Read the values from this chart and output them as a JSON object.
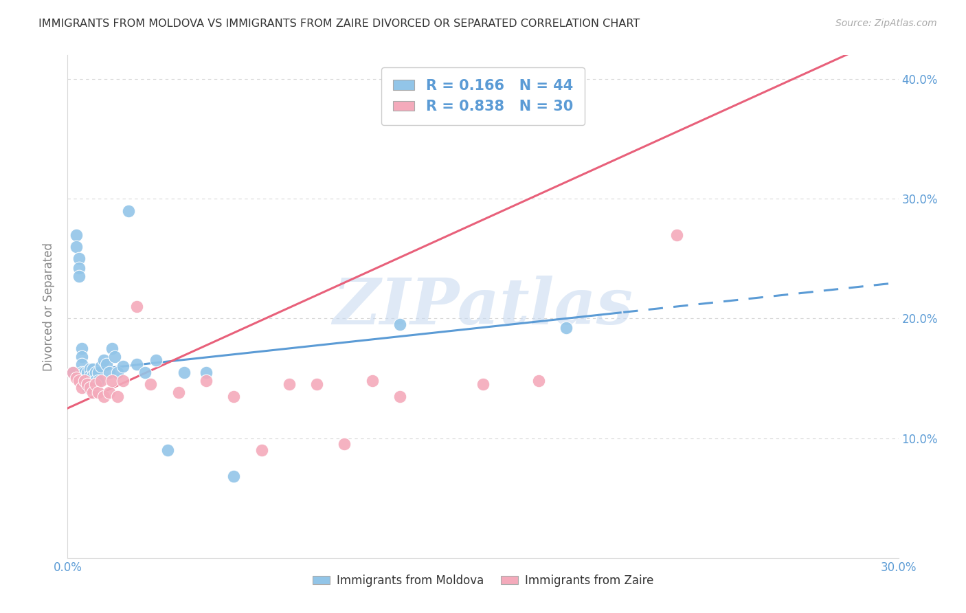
{
  "title": "IMMIGRANTS FROM MOLDOVA VS IMMIGRANTS FROM ZAIRE DIVORCED OR SEPARATED CORRELATION CHART",
  "source": "Source: ZipAtlas.com",
  "ylabel": "Divorced or Separated",
  "xlim": [
    0.0,
    0.3
  ],
  "ylim": [
    0.0,
    0.42
  ],
  "xticks": [
    0.0,
    0.05,
    0.1,
    0.15,
    0.2,
    0.25,
    0.3
  ],
  "yticks": [
    0.1,
    0.2,
    0.3,
    0.4
  ],
  "background_color": "#ffffff",
  "grid_color": "#d8d8d8",
  "moldova_color": "#92C5E8",
  "zaire_color": "#F4AABB",
  "moldova_line_color": "#5B9BD5",
  "zaire_line_color": "#E8607A",
  "watermark_text": "ZIPatlas",
  "moldova_R": 0.166,
  "moldova_N": 44,
  "zaire_R": 0.838,
  "zaire_N": 30,
  "moldova_points_x": [
    0.002,
    0.003,
    0.003,
    0.004,
    0.004,
    0.004,
    0.005,
    0.005,
    0.005,
    0.005,
    0.006,
    0.006,
    0.006,
    0.007,
    0.007,
    0.007,
    0.008,
    0.008,
    0.008,
    0.009,
    0.009,
    0.009,
    0.01,
    0.01,
    0.011,
    0.011,
    0.012,
    0.013,
    0.014,
    0.015,
    0.016,
    0.017,
    0.018,
    0.02,
    0.022,
    0.025,
    0.028,
    0.032,
    0.036,
    0.042,
    0.05,
    0.06,
    0.12,
    0.18
  ],
  "moldova_points_y": [
    0.155,
    0.27,
    0.26,
    0.25,
    0.242,
    0.235,
    0.175,
    0.168,
    0.162,
    0.155,
    0.155,
    0.15,
    0.145,
    0.155,
    0.148,
    0.142,
    0.158,
    0.152,
    0.146,
    0.158,
    0.152,
    0.146,
    0.155,
    0.148,
    0.155,
    0.148,
    0.16,
    0.165,
    0.162,
    0.155,
    0.175,
    0.168,
    0.155,
    0.16,
    0.29,
    0.162,
    0.155,
    0.165,
    0.09,
    0.155,
    0.155,
    0.068,
    0.195,
    0.192
  ],
  "zaire_points_x": [
    0.002,
    0.003,
    0.004,
    0.005,
    0.006,
    0.007,
    0.008,
    0.009,
    0.01,
    0.011,
    0.012,
    0.013,
    0.015,
    0.016,
    0.018,
    0.02,
    0.025,
    0.03,
    0.04,
    0.05,
    0.06,
    0.07,
    0.08,
    0.09,
    0.1,
    0.11,
    0.12,
    0.15,
    0.17,
    0.22
  ],
  "zaire_points_y": [
    0.155,
    0.15,
    0.148,
    0.142,
    0.148,
    0.145,
    0.142,
    0.138,
    0.145,
    0.138,
    0.148,
    0.135,
    0.138,
    0.148,
    0.135,
    0.148,
    0.21,
    0.145,
    0.138,
    0.148,
    0.135,
    0.09,
    0.145,
    0.145,
    0.095,
    0.148,
    0.135,
    0.145,
    0.148,
    0.27
  ],
  "moldova_line_x_solid_end": 0.2,
  "moldova_line_intercept": 0.155,
  "moldova_line_slope": 0.25,
  "zaire_line_intercept": 0.125,
  "zaire_line_slope": 1.05
}
